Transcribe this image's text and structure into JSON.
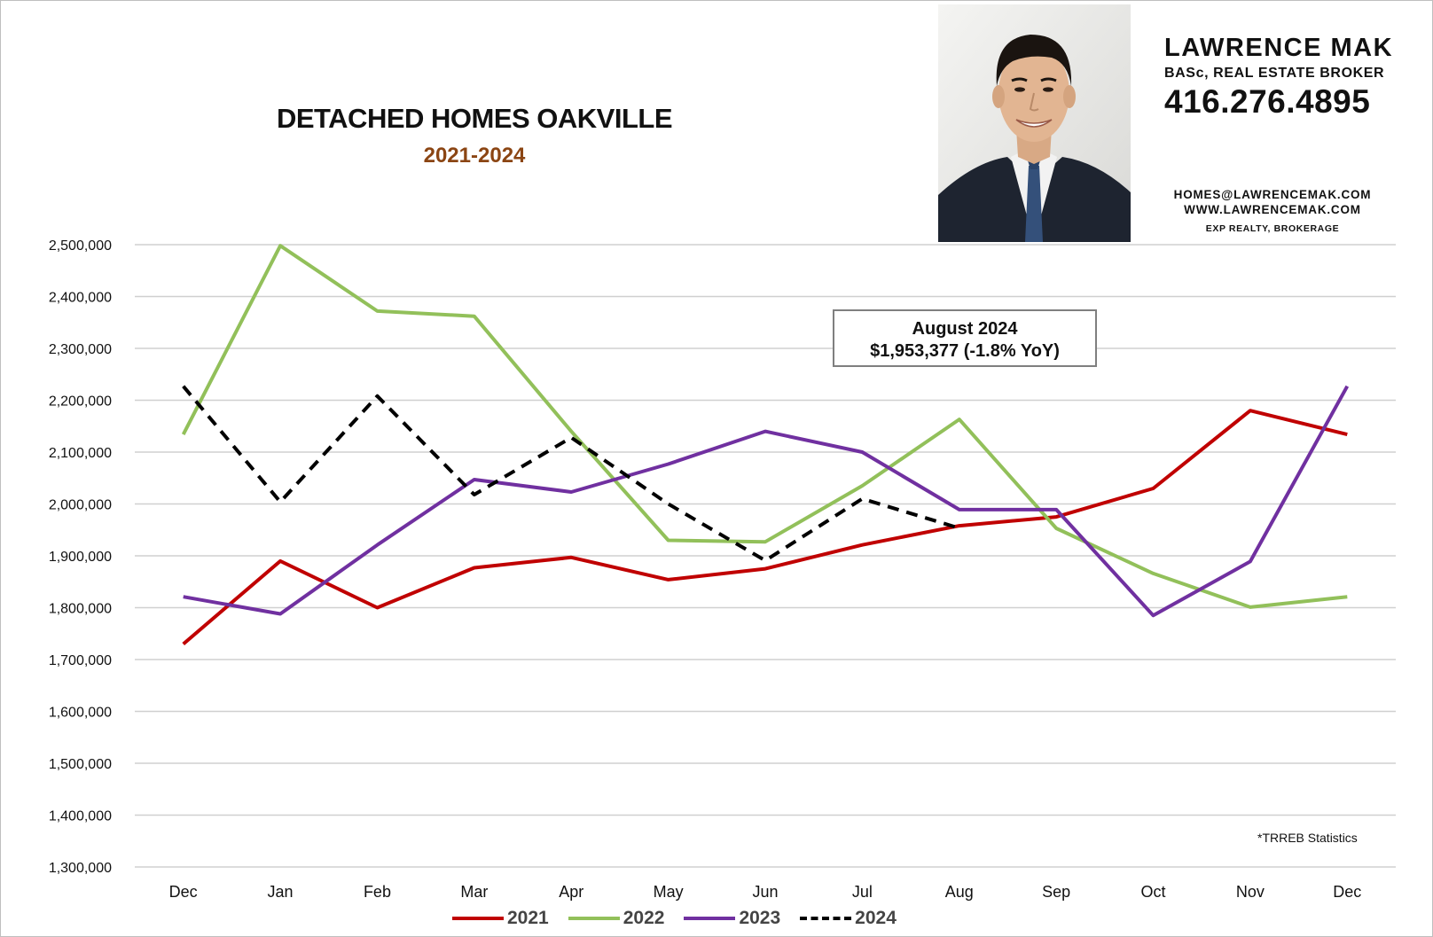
{
  "chart_data": {
    "type": "line",
    "title": "DETACHED HOMES OAKVILLE",
    "subtitle": "2021-2024",
    "categories": [
      "Dec",
      "Jan",
      "Feb",
      "Mar",
      "Apr",
      "May",
      "Jun",
      "Jul",
      "Aug",
      "Sep",
      "Oct",
      "Nov",
      "Dec"
    ],
    "ylim": [
      1300000,
      2500000
    ],
    "yticks": [
      "1,300,000",
      "1,400,000",
      "1,500,000",
      "1,600,000",
      "1,700,000",
      "1,800,000",
      "1,900,000",
      "2,000,000",
      "2,100,000",
      "2,200,000",
      "2,300,000",
      "2,400,000",
      "2,500,000"
    ],
    "grid": "horizontal",
    "legend_position": "bottom",
    "series": [
      {
        "name": "2021",
        "color": "#c00000",
        "dashed": false,
        "values": [
          1730000,
          1890000,
          1800000,
          1877000,
          1897000,
          1854000,
          1875000,
          1921000,
          1958000,
          1975000,
          2030000,
          2180000,
          2134000
        ]
      },
      {
        "name": "2022",
        "color": "#92c05a",
        "dashed": false,
        "values": [
          2134000,
          2498000,
          2372000,
          2362000,
          2140000,
          1930000,
          1927000,
          2035000,
          2163000,
          1953000,
          1866000,
          1801000,
          1821000
        ]
      },
      {
        "name": "2023",
        "color": "#7030a0",
        "dashed": false,
        "values": [
          1821000,
          1788000,
          1921000,
          2047000,
          2023000,
          2077000,
          2140000,
          2100000,
          1989000,
          1989000,
          1785000,
          1889000,
          2227000
        ]
      },
      {
        "name": "2024",
        "color": "#000000",
        "dashed": true,
        "values": [
          2227000,
          2004000,
          2208000,
          2018000,
          2128000,
          2000000,
          1891000,
          2010000,
          1953377,
          null,
          null,
          null,
          null
        ]
      }
    ],
    "annotation": {
      "line1": "August 2024",
      "line2": "$1,953,377 (-1.8% YoY)"
    },
    "source_note": "*TRREB Statistics"
  },
  "agent": {
    "name": "LAWRENCE MAK",
    "credentials": "BASc, REAL ESTATE BROKER",
    "phone": "416.276.4895",
    "email": "HOMES@LAWRENCEMAK.COM",
    "website": "WWW.LAWRENCEMAK.COM",
    "brokerage": "EXP REALTY, BROKERAGE"
  }
}
